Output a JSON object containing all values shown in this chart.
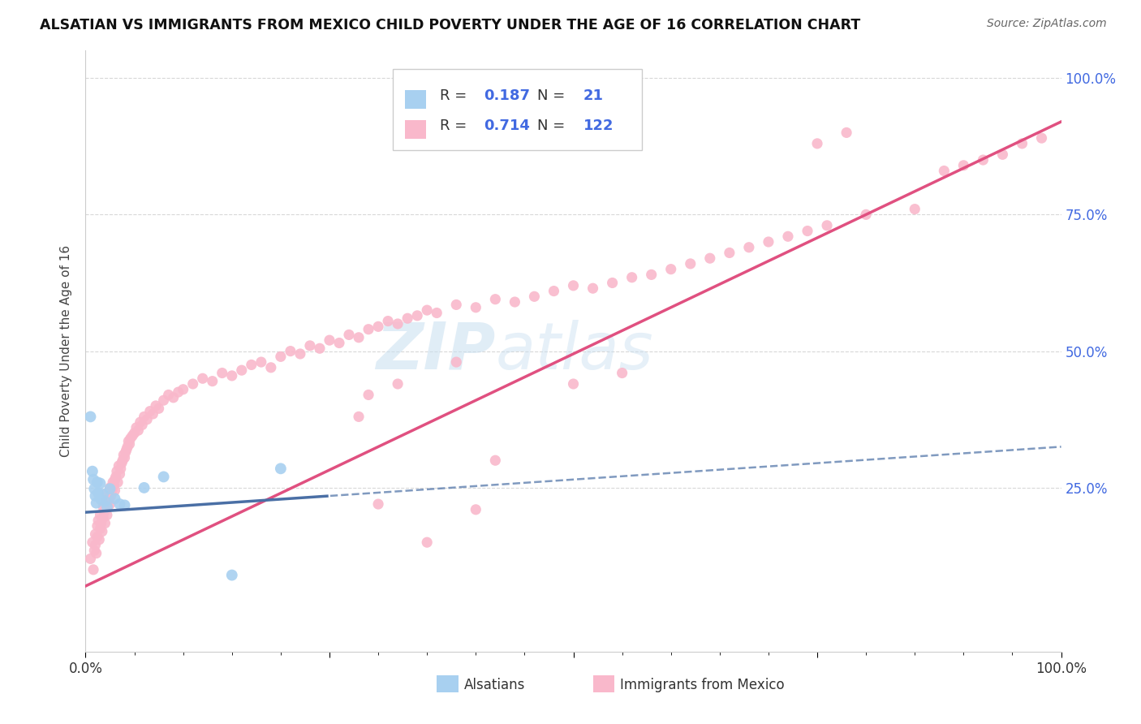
{
  "title": "ALSATIAN VS IMMIGRANTS FROM MEXICO CHILD POVERTY UNDER THE AGE OF 16 CORRELATION CHART",
  "source": "Source: ZipAtlas.com",
  "ylabel": "Child Poverty Under the Age of 16",
  "xlim": [
    0,
    1.0
  ],
  "ylim": [
    -0.05,
    1.05
  ],
  "watermark_zip": "ZIP",
  "watermark_atlas": "atlas",
  "dot_color_alsatian": "#a8d0f0",
  "dot_color_mexico": "#f9b8cb",
  "line_color_alsatian": "#4a6fa5",
  "line_color_mexico": "#e05080",
  "background_color": "#ffffff",
  "legend_R1": "0.187",
  "legend_N1": "21",
  "legend_R2": "0.714",
  "legend_N2": "122",
  "label_alsatian": "Alsatians",
  "label_mexico": "Immigrants from Mexico",
  "blue_text_color": "#4169e1",
  "dark_text_color": "#333333",
  "source_text_color": "#666666",
  "als_x": [
    0.005,
    0.007,
    0.008,
    0.009,
    0.01,
    0.011,
    0.012,
    0.013,
    0.015,
    0.016,
    0.018,
    0.02,
    0.022,
    0.025,
    0.03,
    0.035,
    0.04,
    0.06,
    0.08,
    0.15,
    0.2
  ],
  "als_y": [
    0.38,
    0.28,
    0.265,
    0.248,
    0.235,
    0.222,
    0.26,
    0.24,
    0.258,
    0.228,
    0.238,
    0.225,
    0.215,
    0.248,
    0.23,
    0.22,
    0.218,
    0.25,
    0.27,
    0.09,
    0.285
  ],
  "mex_x": [
    0.005,
    0.007,
    0.008,
    0.009,
    0.01,
    0.01,
    0.011,
    0.012,
    0.012,
    0.013,
    0.014,
    0.015,
    0.015,
    0.016,
    0.017,
    0.018,
    0.018,
    0.019,
    0.02,
    0.02,
    0.021,
    0.022,
    0.022,
    0.023,
    0.024,
    0.025,
    0.025,
    0.026,
    0.027,
    0.028,
    0.029,
    0.03,
    0.03,
    0.031,
    0.032,
    0.033,
    0.034,
    0.035,
    0.036,
    0.037,
    0.038,
    0.039,
    0.04,
    0.041,
    0.042,
    0.043,
    0.044,
    0.045,
    0.046,
    0.048,
    0.05,
    0.052,
    0.054,
    0.056,
    0.058,
    0.06,
    0.063,
    0.066,
    0.069,
    0.072,
    0.075,
    0.08,
    0.085,
    0.09,
    0.095,
    0.1,
    0.11,
    0.12,
    0.13,
    0.14,
    0.15,
    0.16,
    0.17,
    0.18,
    0.19,
    0.2,
    0.21,
    0.22,
    0.23,
    0.24,
    0.25,
    0.26,
    0.27,
    0.28,
    0.29,
    0.3,
    0.31,
    0.32,
    0.33,
    0.34,
    0.35,
    0.36,
    0.38,
    0.4,
    0.42,
    0.44,
    0.46,
    0.48,
    0.5,
    0.52,
    0.54,
    0.56,
    0.58,
    0.6,
    0.62,
    0.64,
    0.66,
    0.68,
    0.7,
    0.72,
    0.74,
    0.76,
    0.8,
    0.85,
    0.88,
    0.9,
    0.92,
    0.94,
    0.96,
    0.98,
    0.75,
    0.78
  ],
  "mex_y": [
    0.12,
    0.15,
    0.1,
    0.135,
    0.165,
    0.145,
    0.13,
    0.18,
    0.16,
    0.19,
    0.155,
    0.2,
    0.175,
    0.185,
    0.17,
    0.195,
    0.215,
    0.205,
    0.185,
    0.21,
    0.225,
    0.2,
    0.24,
    0.215,
    0.23,
    0.22,
    0.25,
    0.235,
    0.245,
    0.26,
    0.255,
    0.265,
    0.245,
    0.27,
    0.28,
    0.26,
    0.29,
    0.275,
    0.285,
    0.295,
    0.3,
    0.31,
    0.305,
    0.315,
    0.32,
    0.325,
    0.335,
    0.33,
    0.34,
    0.345,
    0.35,
    0.36,
    0.355,
    0.37,
    0.365,
    0.38,
    0.375,
    0.39,
    0.385,
    0.4,
    0.395,
    0.41,
    0.42,
    0.415,
    0.425,
    0.43,
    0.44,
    0.45,
    0.445,
    0.46,
    0.455,
    0.465,
    0.475,
    0.48,
    0.47,
    0.49,
    0.5,
    0.495,
    0.51,
    0.505,
    0.52,
    0.515,
    0.53,
    0.525,
    0.54,
    0.545,
    0.555,
    0.55,
    0.56,
    0.565,
    0.575,
    0.57,
    0.585,
    0.58,
    0.595,
    0.59,
    0.6,
    0.61,
    0.62,
    0.615,
    0.625,
    0.635,
    0.64,
    0.65,
    0.66,
    0.67,
    0.68,
    0.69,
    0.7,
    0.71,
    0.72,
    0.73,
    0.75,
    0.76,
    0.83,
    0.84,
    0.85,
    0.86,
    0.88,
    0.89,
    0.88,
    0.9
  ],
  "mex_extra_x": [
    0.3,
    0.35,
    0.4,
    0.42,
    0.38,
    0.29,
    0.32,
    0.28,
    0.5,
    0.55
  ],
  "mex_extra_y": [
    0.22,
    0.15,
    0.21,
    0.3,
    0.48,
    0.42,
    0.44,
    0.38,
    0.44,
    0.46
  ]
}
